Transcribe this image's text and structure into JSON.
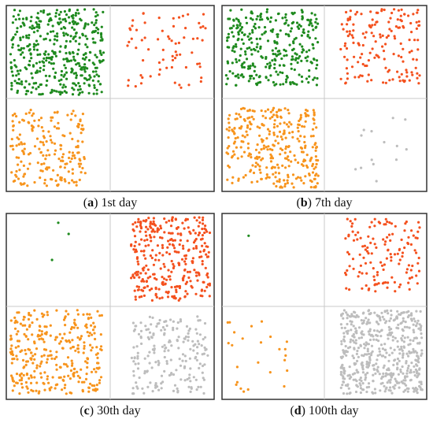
{
  "colors": {
    "green": "#1e8a1e",
    "red": "#f4511e",
    "orange": "#f7941d",
    "gray": "#bdbdbd",
    "frame": "#333333",
    "divider": "#c8c8c8"
  },
  "panels": [
    {
      "letter": "a",
      "caption_rest": ") 1st day"
    },
    {
      "letter": "b",
      "caption_rest": ") 7th day"
    },
    {
      "letter": "c",
      "caption_rest": ") 30th day"
    },
    {
      "letter": "d",
      "caption_rest": ") 100th day"
    }
  ],
  "chart_data": [
    {
      "type": "scatter",
      "title": "(a) 1st day",
      "xlim": [
        0,
        1
      ],
      "ylim": [
        0,
        1
      ],
      "grid": "quadrant divider lines",
      "series": [
        {
          "color_key": "green",
          "count": 420,
          "region": [
            0.02,
            0.47,
            0.52,
            0.98
          ]
        },
        {
          "color_key": "red",
          "count": 70,
          "region": [
            0.58,
            0.96,
            0.55,
            0.97
          ]
        },
        {
          "color_key": "orange",
          "count": 200,
          "region": [
            0.02,
            0.38,
            0.03,
            0.44
          ]
        }
      ]
    },
    {
      "type": "scatter",
      "title": "(b) 7th day",
      "xlim": [
        0,
        1
      ],
      "ylim": [
        0,
        1
      ],
      "grid": "quadrant divider lines",
      "series": [
        {
          "color_key": "green",
          "count": 320,
          "region": [
            0.02,
            0.47,
            0.57,
            0.98
          ]
        },
        {
          "color_key": "red",
          "count": 160,
          "region": [
            0.58,
            0.97,
            0.58,
            0.98
          ]
        },
        {
          "color_key": "orange",
          "count": 320,
          "region": [
            0.02,
            0.47,
            0.02,
            0.45
          ]
        },
        {
          "color_key": "gray",
          "count": 14,
          "region": [
            0.58,
            0.92,
            0.05,
            0.42
          ]
        }
      ]
    },
    {
      "type": "scatter",
      "title": "(c) 30th day",
      "xlim": [
        0,
        1
      ],
      "ylim": [
        0,
        1
      ],
      "grid": "quadrant divider lines",
      "series": [
        {
          "color_key": "green",
          "count": 3,
          "points": [
            [
              0.25,
              0.95
            ],
            [
              0.3,
              0.89
            ],
            [
              0.22,
              0.75
            ]
          ]
        },
        {
          "color_key": "red",
          "count": 330,
          "region": [
            0.6,
            0.98,
            0.53,
            0.98
          ]
        },
        {
          "color_key": "orange",
          "count": 330,
          "region": [
            0.02,
            0.46,
            0.03,
            0.48
          ]
        },
        {
          "color_key": "gray",
          "count": 200,
          "region": [
            0.6,
            0.97,
            0.03,
            0.45
          ]
        }
      ]
    },
    {
      "type": "scatter",
      "title": "(d) 100th day",
      "xlim": [
        0,
        1
      ],
      "ylim": [
        0,
        1
      ],
      "grid": "quadrant divider lines",
      "series": [
        {
          "color_key": "green",
          "count": 1,
          "points": [
            [
              0.13,
              0.88
            ]
          ]
        },
        {
          "color_key": "red",
          "count": 140,
          "region": [
            0.6,
            0.97,
            0.58,
            0.97
          ]
        },
        {
          "color_key": "orange",
          "count": 25,
          "region": [
            0.02,
            0.35,
            0.04,
            0.42
          ]
        },
        {
          "color_key": "gray",
          "count": 520,
          "region": [
            0.58,
            0.98,
            0.03,
            0.48
          ]
        }
      ]
    }
  ]
}
